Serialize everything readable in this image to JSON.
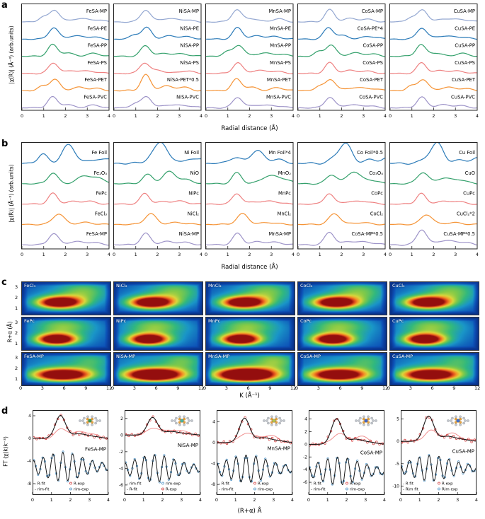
{
  "panel_letters": {
    "a": "a",
    "b": "b",
    "c": "c",
    "d": "d"
  },
  "chart_data": {
    "panel_a": {
      "type": "line",
      "xlabel": "Radial distance (Å)",
      "ylabel": "|χ(R)| (Å⁻³) (arb.units)",
      "xlim": [
        0,
        4
      ],
      "xticks": [
        0,
        1,
        2,
        3,
        4
      ],
      "colors": [
        "#93a7d1",
        "#2a7ab8",
        "#33a06b",
        "#ee8080",
        "#f59335",
        "#9d93c8"
      ],
      "shapes": {
        "saA": [
          [
            1.45,
            1,
            0.22
          ],
          [
            2.35,
            0.26,
            0.32
          ],
          [
            3.15,
            0.2,
            0.35
          ]
        ],
        "saB": [
          [
            0.95,
            0.38,
            0.2
          ],
          [
            1.5,
            1,
            0.23
          ],
          [
            2.6,
            0.28,
            0.33
          ],
          [
            3.4,
            0.18,
            0.3
          ]
        ],
        "saC": [
          [
            1.4,
            1,
            0.22
          ],
          [
            2.05,
            0.3,
            0.28
          ],
          [
            3.3,
            0.24,
            0.32
          ]
        ]
      },
      "columns": [
        {
          "element": "Fe",
          "curves": [
            {
              "label": "FeSA-MP",
              "shape": "saB",
              "amp": 17
            },
            {
              "label": "FeSA-PE",
              "shape": "saA",
              "amp": 16
            },
            {
              "label": "FeSA-PP",
              "shape": "saC",
              "amp": 16
            },
            {
              "label": "FeSA-PS",
              "shape": "saA",
              "amp": 15
            },
            {
              "label": "FeSA-PET",
              "shape": "saB",
              "amp": 16
            },
            {
              "label": "FeSA-PVC",
              "shape": "saC",
              "amp": 15
            }
          ]
        },
        {
          "element": "Ni",
          "curves": [
            {
              "label": "NiSA-MP",
              "shape": "saA",
              "amp": 17
            },
            {
              "label": "NiSA-PE",
              "shape": "saB",
              "amp": 16
            },
            {
              "label": "NiSA-PP",
              "shape": "saA",
              "amp": 15
            },
            {
              "label": "NiSA-PS",
              "shape": "saC",
              "amp": 15
            },
            {
              "label": "NiSA-PET*0.5",
              "shape": "saA",
              "amp": 22
            },
            {
              "label": "NiSA-PVC",
              "shape": "saB",
              "amp": 16
            }
          ]
        },
        {
          "element": "Mn",
          "curves": [
            {
              "label": "MnSA-MP",
              "shape": "saC",
              "amp": 17
            },
            {
              "label": "MnSA-PE",
              "shape": "saA",
              "amp": 16
            },
            {
              "label": "MnSA-PP",
              "shape": "saB",
              "amp": 16
            },
            {
              "label": "MnSA-PS",
              "shape": "saA",
              "amp": 15
            },
            {
              "label": "MnSA-PET",
              "shape": "saC",
              "amp": 16
            },
            {
              "label": "MnSA-PVC",
              "shape": "saA",
              "amp": 15
            }
          ]
        },
        {
          "element": "Co",
          "curves": [
            {
              "label": "CoSA-MP",
              "shape": "saA",
              "amp": 17
            },
            {
              "label": "CoSA-PE*4",
              "shape": "saC",
              "amp": 16
            },
            {
              "label": "CoSA-PP",
              "shape": "saB",
              "amp": 16
            },
            {
              "label": "CoSA-PS",
              "shape": "saA",
              "amp": 15
            },
            {
              "label": "CoSA-PET",
              "shape": "saB",
              "amp": 16
            },
            {
              "label": "CoSA-PVC",
              "shape": "saA",
              "amp": 15
            }
          ]
        },
        {
          "element": "Cu",
          "curves": [
            {
              "label": "CuSA-MP",
              "shape": "saB",
              "amp": 17
            },
            {
              "label": "CuSA-PE",
              "shape": "saA",
              "amp": 16
            },
            {
              "label": "CuSA-PP",
              "shape": "saC",
              "amp": 16
            },
            {
              "label": "CuSA-PS",
              "shape": "saA",
              "amp": 15
            },
            {
              "label": "CuSA-PET",
              "shape": "saB",
              "amp": 16
            },
            {
              "label": "CuSA-PVC",
              "shape": "saA",
              "amp": 15
            }
          ]
        }
      ]
    },
    "panel_b": {
      "type": "line",
      "xlabel": "Radial distance (Å)",
      "ylabel": "|χ(R)| (Å⁻³) (arb.units)",
      "xlim": [
        0,
        4
      ],
      "xticks": [
        0,
        1,
        2,
        3,
        4
      ],
      "colors": [
        "#2a7ab8",
        "#33a06b",
        "#ee8080",
        "#f59335",
        "#9d93c8"
      ],
      "shapes": {
        "foilFe": [
          [
            0.95,
            0.5,
            0.22
          ],
          [
            2.15,
            1,
            0.3
          ],
          [
            3.4,
            0.22,
            0.3
          ],
          [
            4.2,
            0.25,
            0.3
          ]
        ],
        "foilNi": [
          [
            1.75,
            0.3,
            0.28
          ],
          [
            2.2,
            1,
            0.27
          ],
          [
            3.3,
            0.18,
            0.3
          ],
          [
            4.1,
            0.28,
            0.28
          ]
        ],
        "foilMn": [
          [
            1.35,
            0.45,
            0.28
          ],
          [
            2.35,
            1,
            0.3
          ],
          [
            3.3,
            0.3,
            0.3
          ]
        ],
        "oxideA": [
          [
            1.42,
            0.9,
            0.22
          ],
          [
            2.9,
            0.65,
            0.35
          ],
          [
            3.6,
            0.35,
            0.3
          ]
        ],
        "oxideB": [
          [
            1.55,
            0.75,
            0.24
          ],
          [
            2.55,
            1,
            0.3
          ],
          [
            3.35,
            0.3,
            0.3
          ]
        ],
        "oxideC": [
          [
            1.5,
            1,
            0.25
          ],
          [
            2.45,
            0.5,
            0.3
          ],
          [
            3.2,
            0.35,
            0.3
          ]
        ],
        "pc": [
          [
            1.42,
            1,
            0.21
          ],
          [
            2.3,
            0.22,
            0.3
          ],
          [
            3.05,
            0.26,
            0.32
          ]
        ],
        "cl": [
          [
            1.68,
            1,
            0.26
          ],
          [
            2.9,
            0.18,
            0.35
          ]
        ],
        "sa": [
          [
            1.45,
            1,
            0.22
          ],
          [
            2.4,
            0.26,
            0.32
          ],
          [
            3.2,
            0.2,
            0.35
          ]
        ]
      },
      "columns": [
        {
          "element": "Fe",
          "curves": [
            {
              "label": "Fe Foil",
              "shape": "foilFe",
              "amp": 26
            },
            {
              "label": "Fe₂O₃",
              "shape": "oxideA",
              "amp": 17
            },
            {
              "label": "FePc",
              "shape": "pc",
              "amp": 15
            },
            {
              "label": "FeCl₃",
              "shape": "cl",
              "amp": 15
            },
            {
              "label": "FeSA-MP",
              "shape": "sa",
              "amp": 16
            }
          ]
        },
        {
          "element": "Ni",
          "curves": [
            {
              "label": "Ni Foil",
              "shape": "foilNi",
              "amp": 28
            },
            {
              "label": "NiO",
              "shape": "oxideB",
              "amp": 17
            },
            {
              "label": "NiPc",
              "shape": "pc",
              "amp": 15
            },
            {
              "label": "NiCl₂",
              "shape": "cl",
              "amp": 15
            },
            {
              "label": "NiSA-MP",
              "shape": "sa",
              "amp": 16
            }
          ]
        },
        {
          "element": "Mn",
          "curves": [
            {
              "label": "Mn Foil*4",
              "shape": "foilMn",
              "amp": 18
            },
            {
              "label": "MnO₂",
              "shape": "oxideA",
              "amp": 17
            },
            {
              "label": "MnPc",
              "shape": "pc",
              "amp": 15
            },
            {
              "label": "MnCl₂",
              "shape": "cl",
              "amp": 15
            },
            {
              "label": "MnSA-MP",
              "shape": "sa",
              "amp": 16
            }
          ]
        },
        {
          "element": "Co",
          "curves": [
            {
              "label": "Co Foil*0.5",
              "shape": "foilNi",
              "amp": 26
            },
            {
              "label": "Co₃O₄",
              "shape": "oxideB",
              "amp": 17
            },
            {
              "label": "CoPc",
              "shape": "pc",
              "amp": 15
            },
            {
              "label": "CoCl₂",
              "shape": "cl",
              "amp": 15
            },
            {
              "label": "CoSA-MP*0.5",
              "shape": "sa",
              "amp": 18
            }
          ]
        },
        {
          "element": "Cu",
          "curves": [
            {
              "label": "Cu Foil",
              "shape": "foilNi",
              "amp": 26
            },
            {
              "label": "CuO",
              "shape": "oxideC",
              "amp": 16
            },
            {
              "label": "CuPc",
              "shape": "pc",
              "amp": 15
            },
            {
              "label": "CuCl₂*2",
              "shape": "cl",
              "amp": 14
            },
            {
              "label": "CuSA-MP*0.5",
              "shape": "sa",
              "amp": 22
            }
          ]
        }
      ]
    },
    "panel_c": {
      "type": "heatmap",
      "xlabel": "K (Å⁻¹)",
      "ylabel": "R+α (Å)",
      "xticks": [
        0,
        3,
        6,
        9,
        12
      ],
      "yticks": [
        3,
        2,
        1
      ],
      "klim": [
        0,
        12
      ],
      "rlim": [
        0.5,
        3.5
      ],
      "blob_sets": {
        "cl": [
          [
            5.0,
            1.65,
            2.2,
            0.4,
            1.0
          ],
          [
            8.5,
            2.7,
            2.5,
            0.7,
            0.3
          ],
          [
            6,
            2.1,
            6,
            1.5,
            0.28
          ]
        ],
        "pc": [
          [
            4.6,
            1.5,
            2.0,
            0.38,
            1.0
          ],
          [
            5.5,
            2.75,
            3.0,
            0.6,
            0.33
          ],
          [
            6,
            2.0,
            6,
            1.5,
            0.26
          ]
        ],
        "sa": [
          [
            5.4,
            1.5,
            2.9,
            0.42,
            1.05
          ],
          [
            6,
            2.3,
            6,
            1.5,
            0.3
          ],
          [
            9.5,
            2.8,
            2.0,
            0.6,
            0.22
          ]
        ]
      },
      "columns": [
        {
          "cells": [
            {
              "label": "FeCl₃",
              "set": "cl"
            },
            {
              "label": "FePc",
              "set": "pc"
            },
            {
              "label": "FeSA-MP",
              "set": "sa"
            }
          ]
        },
        {
          "cells": [
            {
              "label": "NiCl₂",
              "set": "cl"
            },
            {
              "label": "NiPc",
              "set": "pc"
            },
            {
              "label": "NiSA-MP",
              "set": "sa",
              "boost": 1.1
            }
          ]
        },
        {
          "cells": [
            {
              "label": "MnCl₂",
              "set": "cl"
            },
            {
              "label": "MnPc",
              "set": "pc"
            },
            {
              "label": "MnSA-MP",
              "set": "sa",
              "boost": 1.2
            }
          ]
        },
        {
          "cells": [
            {
              "label": "CoCl₂",
              "set": "cl"
            },
            {
              "label": "CoPc",
              "set": "pc"
            },
            {
              "label": "CoSA-MP",
              "set": "sa"
            }
          ]
        },
        {
          "cells": [
            {
              "label": "CuCl₂",
              "set": "cl"
            },
            {
              "label": "CuPc",
              "set": "pc"
            },
            {
              "label": "CuSA-MP",
              "set": "sa"
            }
          ]
        }
      ]
    },
    "panel_d": {
      "type": "line+scatter",
      "xlabel": "(R+α) Å",
      "ylabel": "FT (χ(k)k⁻³)",
      "xlim": [
        0,
        4
      ],
      "xticks": [
        0,
        1,
        2,
        3,
        4
      ],
      "colors": {
        "fit": "#1a1a1a",
        "r_exp": "#d23b3b",
        "rim": "#f09090",
        "rim_exp": "#4a90c4"
      },
      "subplots": [
        {
          "label": "FeSA-MP",
          "ylim": [
            -10,
            5
          ],
          "yticks": [
            4,
            0,
            -4,
            -8
          ],
          "peak_h": 4.0,
          "osc_base": -5.0,
          "osc_amp": 2.3,
          "label_y": -2.2,
          "center_color": "#3a9e4f",
          "legend": {
            "lines": [
              "- R-fit",
              "- rim-fit"
            ],
            "markers": [
              "R-exp",
              "rim-exp"
            ]
          }
        },
        {
          "label": "NiSA-MP",
          "ylim": [
            -7.2,
            3
          ],
          "yticks": [
            2,
            0,
            -2,
            -4,
            -6
          ],
          "peak_h": 2.1,
          "osc_base": -4.0,
          "osc_amp": 1.5,
          "label_y": -1.4,
          "center_color": "#49b8a0",
          "legend": {
            "lines": [
              "- rim-fit",
              "- R-fit"
            ],
            "markers": [
              "rim-exp",
              "R-exp"
            ]
          }
        },
        {
          "label": "MnSA-MP",
          "ylim": [
            -10,
            6.2
          ],
          "yticks": [
            4,
            0,
            -4,
            -8
          ],
          "peak_h": 4.6,
          "osc_base": -5.0,
          "osc_amp": 2.4,
          "label_y": -1.4,
          "center_color": "#b7c94a",
          "legend": {
            "lines": [
              "- R-fit",
              "- rim-fit"
            ],
            "markers": [
              "R-exp",
              "rim-exp"
            ]
          }
        },
        {
          "label": "CoSA-MP",
          "ylim": [
            -8,
            5.4
          ],
          "yticks": [
            4,
            2,
            0,
            -2,
            -4,
            -6
          ],
          "peak_h": 4.0,
          "osc_base": -4.2,
          "osc_amp": 2.0,
          "label_y": -1.6,
          "center_color": "#4466c8",
          "legend": {
            "lines": [
              "- R-fit",
              "- rim-fit"
            ],
            "markers": [
              "R-exp",
              "rim-exp"
            ]
          }
        },
        {
          "label": "CuSA-MP",
          "ylim": [
            -12,
            7
          ],
          "yticks": [
            5,
            0,
            -5,
            -10
          ],
          "peak_h": 5.6,
          "osc_base": -6.0,
          "osc_amp": 2.6,
          "label_y": -2.6,
          "center_color": "#3f6fd0",
          "legend": {
            "lines": [
              "- R fit",
              "- Rim fit"
            ],
            "markers": [
              "R exp",
              "Rim exp"
            ]
          }
        }
      ]
    }
  }
}
